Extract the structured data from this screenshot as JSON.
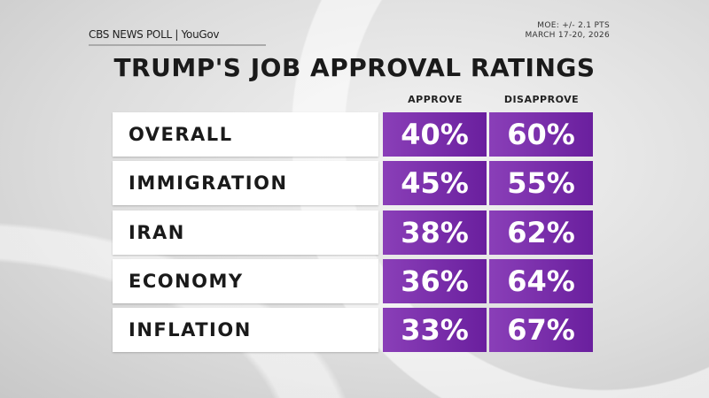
{
  "header": {
    "logo": "CBS NEWS POLL | YouGov",
    "moe": "MOE: +/- 2.1 PTS",
    "dates": "MARCH 17-20, 2026"
  },
  "colors": {
    "cell": "#7b2fae"
  },
  "chart_data": {
    "type": "table",
    "title": "TRUMP'S JOB APPROVAL RATINGS",
    "columns": [
      "APPROVE",
      "DISAPPROVE"
    ],
    "rows": [
      {
        "label": "OVERALL",
        "approve": "40%",
        "disapprove": "60%"
      },
      {
        "label": "IMMIGRATION",
        "approve": "45%",
        "disapprove": "55%"
      },
      {
        "label": "IRAN",
        "approve": "38%",
        "disapprove": "62%"
      },
      {
        "label": "ECONOMY",
        "approve": "36%",
        "disapprove": "64%"
      },
      {
        "label": "INFLATION",
        "approve": "33%",
        "disapprove": "67%"
      }
    ]
  }
}
